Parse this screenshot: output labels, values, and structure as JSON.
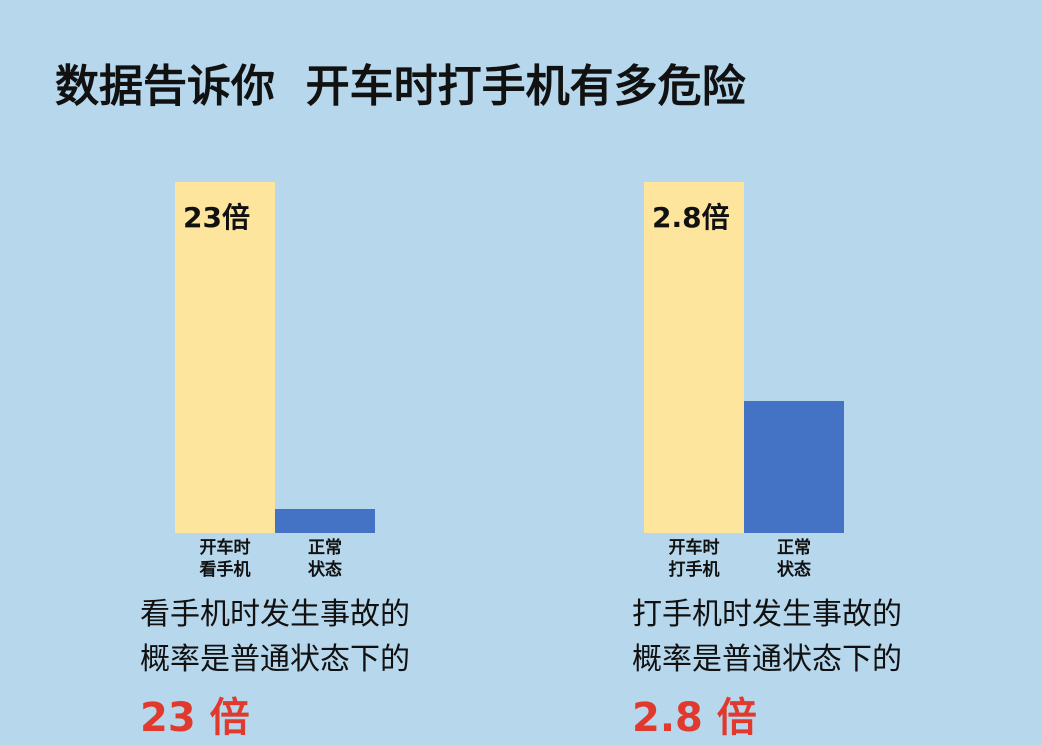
{
  "title": "数据告诉你  开车时打手机有多危险",
  "chart_data": [
    {
      "type": "bar",
      "categories": [
        "开车时\n看手机",
        "正常\n状态"
      ],
      "values": [
        23,
        1.6
      ],
      "value_labels": [
        "23倍",
        null
      ],
      "colors": [
        "#fde59d",
        "#4472c4"
      ],
      "ylim": [
        0,
        23
      ],
      "caption": "看手机时发生事故的\n概率是普通状态下的",
      "highlight": "23 倍"
    },
    {
      "type": "bar",
      "categories": [
        "开车时\n打手机",
        "正常\n状态"
      ],
      "values": [
        2.8,
        1.05
      ],
      "value_labels": [
        "2.8倍",
        null
      ],
      "colors": [
        "#fde59d",
        "#4472c4"
      ],
      "ylim": [
        0,
        2.8
      ],
      "caption": "打手机时发生事故的\n概率是普通状态下的",
      "highlight": "2.8 倍"
    }
  ]
}
